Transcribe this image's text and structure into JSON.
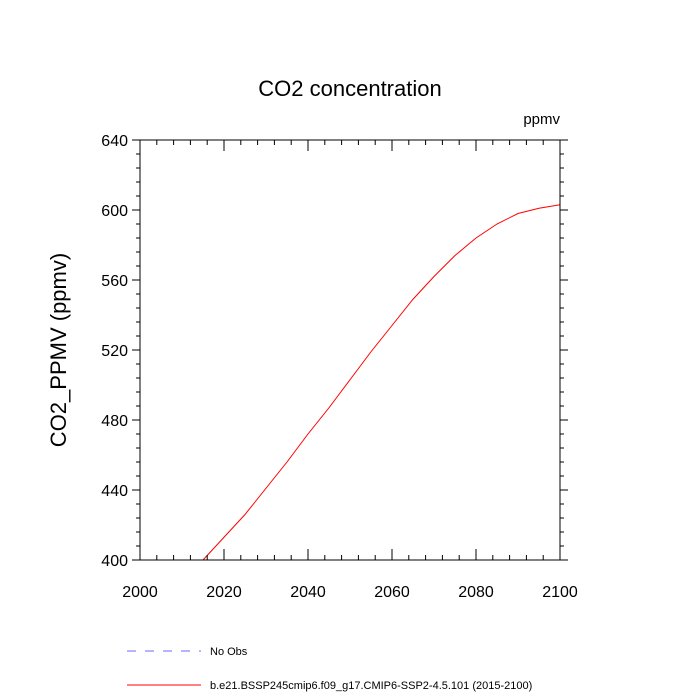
{
  "chart_data": {
    "type": "line",
    "title": "CO2 concentration",
    "units_label": "ppmv",
    "ylabel": "CO2_PPMV  (ppmv)",
    "xlabel": "",
    "xlim": [
      2000,
      2100
    ],
    "ylim": [
      400,
      640
    ],
    "x_ticks": [
      "2000",
      "2020",
      "2040",
      "2060",
      "2080",
      "2100"
    ],
    "x_tick_values": [
      2000,
      2020,
      2040,
      2060,
      2080,
      2100
    ],
    "y_ticks": [
      "400",
      "440",
      "480",
      "520",
      "560",
      "600",
      "640"
    ],
    "y_tick_values": [
      400,
      440,
      480,
      520,
      560,
      600,
      640
    ],
    "grid": false,
    "legend_position": "bottom",
    "series": [
      {
        "name": "No Obs",
        "color": "#6b6bff",
        "dash": "dashed",
        "x": [],
        "y": []
      },
      {
        "name": "b.e21.BSSP245cmip6.f09_g17.CMIP6-SSP2-4.5.101 (2015-2100)",
        "color": "#ff0000",
        "dash": "solid",
        "x": [
          2015,
          2020,
          2025,
          2030,
          2035,
          2040,
          2045,
          2050,
          2055,
          2060,
          2065,
          2070,
          2075,
          2080,
          2085,
          2090,
          2095,
          2100
        ],
        "y": [
          400,
          413,
          426,
          441,
          456,
          472,
          487,
          503,
          519,
          534,
          549,
          562,
          574,
          584,
          592,
          598,
          601,
          603
        ]
      }
    ]
  }
}
